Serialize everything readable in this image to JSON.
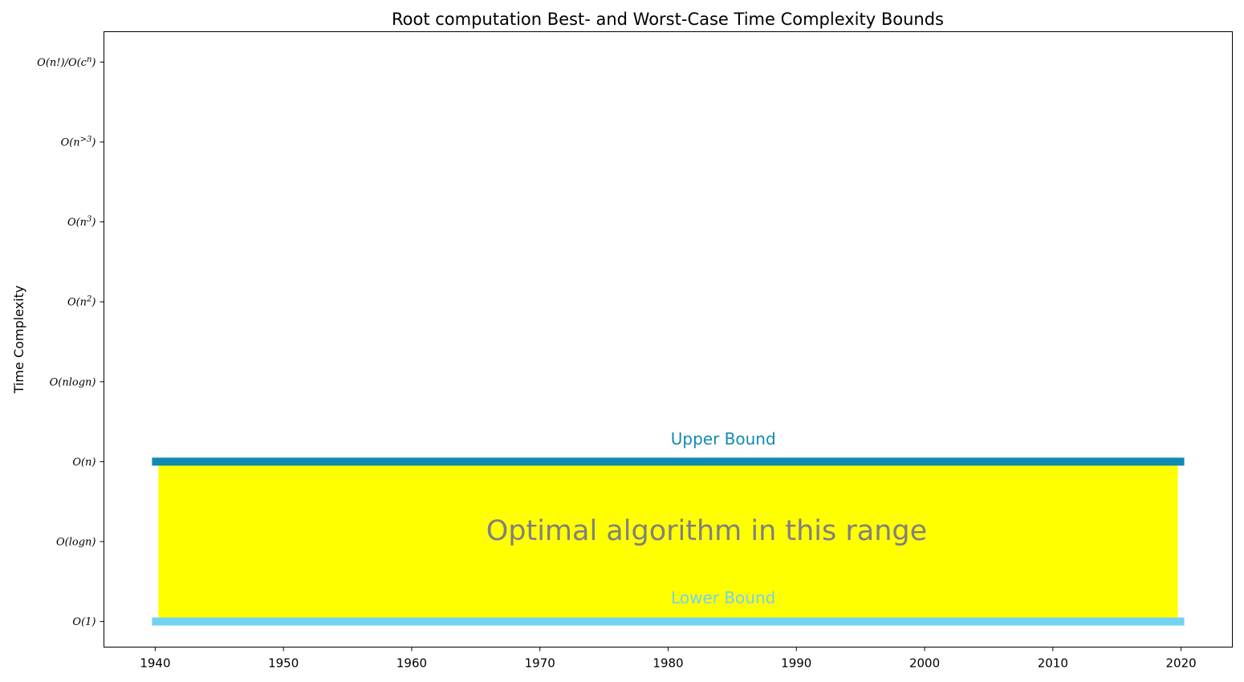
{
  "chart_data": {
    "type": "area",
    "title": "Root computation Best- and Worst-Case Time Complexity Bounds",
    "xlabel": "",
    "ylabel": "Time Complexity",
    "x_ticks": [
      1940,
      1950,
      1960,
      1970,
      1980,
      1990,
      2000,
      2010,
      2020
    ],
    "xlim": [
      1936,
      2024
    ],
    "y_categories": [
      "O(1)",
      "O(logn)",
      "O(n)",
      "O(nlogn)",
      "O(n^2)",
      "O(n^3)",
      "O(n^>3)",
      "O(n!)/O(c^n)"
    ],
    "ylim": [
      -0.32,
      7.38
    ],
    "grid": false,
    "series": [
      {
        "name": "Upper Bound",
        "x": [
          1940,
          2020
        ],
        "y": [
          2,
          2
        ],
        "color": "#118ab2"
      },
      {
        "name": "Lower Bound",
        "x": [
          1940,
          2020
        ],
        "y": [
          0,
          0
        ],
        "color": "#73d2f3"
      }
    ],
    "fill": {
      "x": [
        1940,
        2020
      ],
      "y_low": 0,
      "y_high": 2,
      "color": "#ffff00"
    },
    "annotations": [
      {
        "text": "Optimal algorithm in this range",
        "x": 1983,
        "y": 1.12,
        "color": "#808080"
      },
      {
        "text": "Upper Bound",
        "x": 1984.3,
        "y": 2.27,
        "color": "#118ab2"
      },
      {
        "text": "Lower Bound",
        "x": 1984.3,
        "y": 0.28,
        "color": "#73d2f3"
      }
    ]
  }
}
